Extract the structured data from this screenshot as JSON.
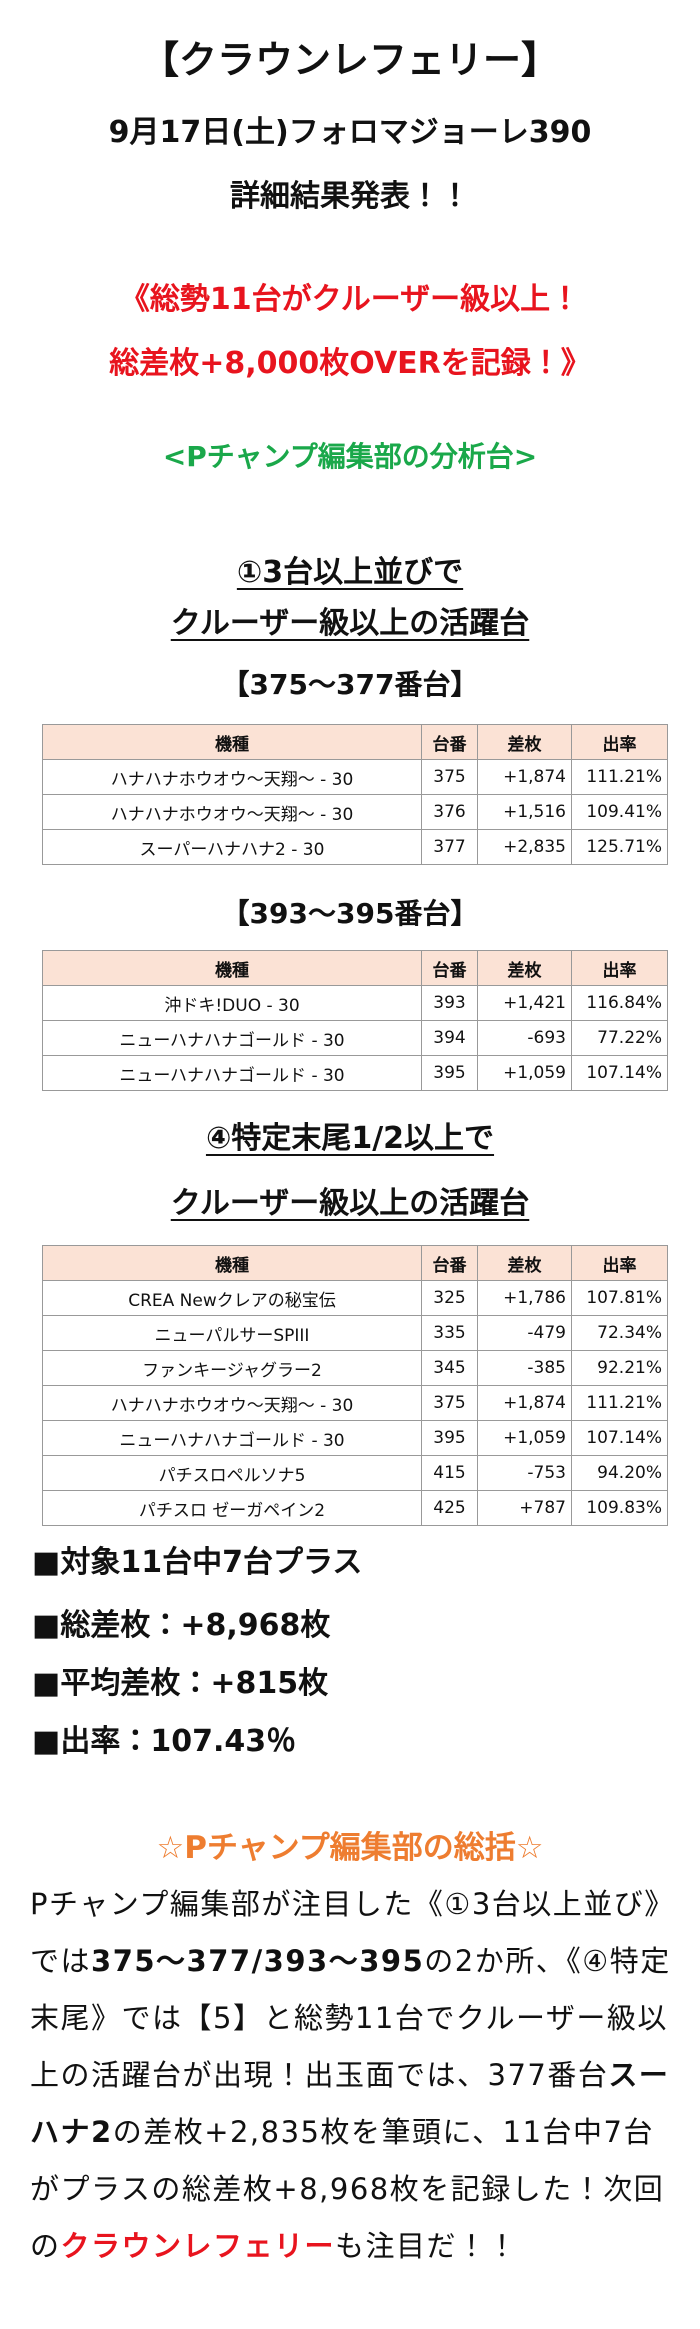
{
  "header": {
    "title": "【クラウンレフェリー】",
    "subtitle": "9月17日(土)フォロマジョーレ390",
    "announcement": "詳細結果発表！！"
  },
  "highlight": [
    "《総勢11台がクルーザー級以上！",
    "総差枚+8,000枚OVERを記録！》"
  ],
  "section_label": "<Pチャンプ編集部の分析台>",
  "groups": [
    {
      "heading": [
        "①3台以上並びで",
        "クルーザー級以上の活躍台"
      ],
      "tables": [
        {
          "caption": "【375〜377番台】",
          "columns": [
            "機種",
            "台番",
            "差枚",
            "出率"
          ],
          "rows": [
            [
              "ハナハナホウオウ〜天翔〜 - 30",
              "375",
              "+1,874",
              "111.21%"
            ],
            [
              "ハナハナホウオウ〜天翔〜 - 30",
              "376",
              "+1,516",
              "109.41%"
            ],
            [
              "スーパーハナハナ2 - 30",
              "377",
              "+2,835",
              "125.71%"
            ]
          ]
        },
        {
          "caption": "【393〜395番台】",
          "columns": [
            "機種",
            "台番",
            "差枚",
            "出率"
          ],
          "rows": [
            [
              "沖ドキ!DUO - 30",
              "393",
              "+1,421",
              "116.84%"
            ],
            [
              "ニューハナハナゴールド - 30",
              "394",
              "-693",
              "77.22%"
            ],
            [
              "ニューハナハナゴールド - 30",
              "395",
              "+1,059",
              "107.14%"
            ]
          ]
        }
      ]
    },
    {
      "heading": [
        "④特定末尾1/2以上で",
        "クルーザー級以上の活躍台"
      ],
      "tables": [
        {
          "columns": [
            "機種",
            "台番",
            "差枚",
            "出率"
          ],
          "rows": [
            [
              "CREA Newクレアの秘宝伝",
              "325",
              "+1,786",
              "107.81%"
            ],
            [
              "ニューパルサーSPIII",
              "335",
              "-479",
              "72.34%"
            ],
            [
              "ファンキージャグラー2",
              "345",
              "-385",
              "92.21%"
            ],
            [
              "ハナハナホウオウ〜天翔〜 - 30",
              "375",
              "+1,874",
              "111.21%"
            ],
            [
              "ニューハナハナゴールド - 30",
              "395",
              "+1,059",
              "107.14%"
            ],
            [
              "パチスロペルソナ5",
              "415",
              "-753",
              "94.20%"
            ],
            [
              "パチスロ ゼーガペイン2",
              "425",
              "+787",
              "109.83%"
            ]
          ]
        }
      ]
    }
  ],
  "summary": [
    "■対象11台中7台プラス",
    "■総差枚：+8,968枚",
    "■平均差枚：+815枚",
    "■出率：107.43％"
  ],
  "conclusion": {
    "title": "☆Pチャンプ編集部の総括☆",
    "segments": [
      {
        "text": "Pチャンプ編集部が注目した《①3台以上並び》では",
        "style": "plain"
      },
      {
        "text": "375〜377/393〜395",
        "style": "bold"
      },
      {
        "text": "の2か所、《④特定末尾》では【5】と総勢11台でクルーザー級以上の活躍台が出現！出玉面では、377番台",
        "style": "plain"
      },
      {
        "text": "スーハナ2",
        "style": "bold"
      },
      {
        "text": "の差枚+2,835枚を筆頭に、11台中7台がプラスの総差枚+8,968枚を記録した！次回の",
        "style": "plain"
      },
      {
        "text": "クラウンレフェリー",
        "style": "red"
      },
      {
        "text": "も注目だ！！",
        "style": "plain"
      }
    ]
  }
}
